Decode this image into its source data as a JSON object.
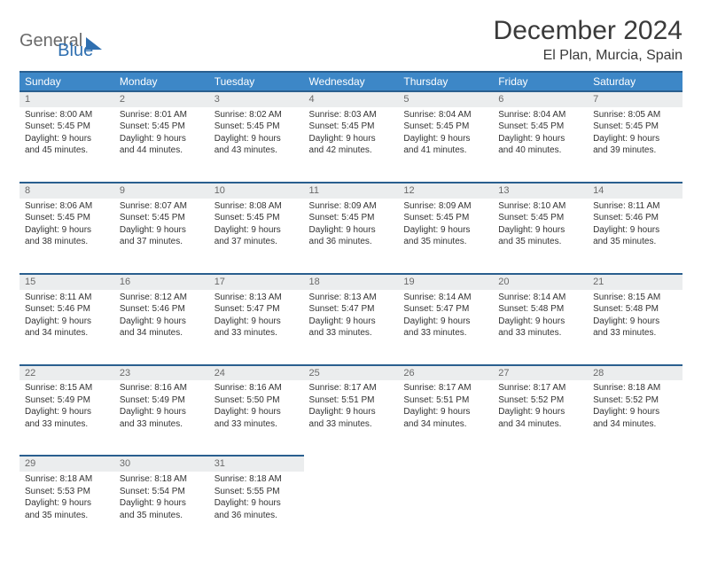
{
  "colors": {
    "header_bg": "#3d87c7",
    "header_border": "#2a5f8f",
    "daynum_bg": "#ebedee",
    "text": "#333333",
    "logo_gray": "#6a6a6a",
    "logo_blue": "#2f6fb0"
  },
  "logo": {
    "part1": "General",
    "part2": "Blue"
  },
  "title": {
    "month": "December 2024",
    "location": "El Plan, Murcia, Spain"
  },
  "weekdays": [
    "Sunday",
    "Monday",
    "Tuesday",
    "Wednesday",
    "Thursday",
    "Friday",
    "Saturday"
  ],
  "weeks": [
    [
      {
        "n": "1",
        "sr": "Sunrise: 8:00 AM",
        "ss": "Sunset: 5:45 PM",
        "d1": "Daylight: 9 hours",
        "d2": "and 45 minutes."
      },
      {
        "n": "2",
        "sr": "Sunrise: 8:01 AM",
        "ss": "Sunset: 5:45 PM",
        "d1": "Daylight: 9 hours",
        "d2": "and 44 minutes."
      },
      {
        "n": "3",
        "sr": "Sunrise: 8:02 AM",
        "ss": "Sunset: 5:45 PM",
        "d1": "Daylight: 9 hours",
        "d2": "and 43 minutes."
      },
      {
        "n": "4",
        "sr": "Sunrise: 8:03 AM",
        "ss": "Sunset: 5:45 PM",
        "d1": "Daylight: 9 hours",
        "d2": "and 42 minutes."
      },
      {
        "n": "5",
        "sr": "Sunrise: 8:04 AM",
        "ss": "Sunset: 5:45 PM",
        "d1": "Daylight: 9 hours",
        "d2": "and 41 minutes."
      },
      {
        "n": "6",
        "sr": "Sunrise: 8:04 AM",
        "ss": "Sunset: 5:45 PM",
        "d1": "Daylight: 9 hours",
        "d2": "and 40 minutes."
      },
      {
        "n": "7",
        "sr": "Sunrise: 8:05 AM",
        "ss": "Sunset: 5:45 PM",
        "d1": "Daylight: 9 hours",
        "d2": "and 39 minutes."
      }
    ],
    [
      {
        "n": "8",
        "sr": "Sunrise: 8:06 AM",
        "ss": "Sunset: 5:45 PM",
        "d1": "Daylight: 9 hours",
        "d2": "and 38 minutes."
      },
      {
        "n": "9",
        "sr": "Sunrise: 8:07 AM",
        "ss": "Sunset: 5:45 PM",
        "d1": "Daylight: 9 hours",
        "d2": "and 37 minutes."
      },
      {
        "n": "10",
        "sr": "Sunrise: 8:08 AM",
        "ss": "Sunset: 5:45 PM",
        "d1": "Daylight: 9 hours",
        "d2": "and 37 minutes."
      },
      {
        "n": "11",
        "sr": "Sunrise: 8:09 AM",
        "ss": "Sunset: 5:45 PM",
        "d1": "Daylight: 9 hours",
        "d2": "and 36 minutes."
      },
      {
        "n": "12",
        "sr": "Sunrise: 8:09 AM",
        "ss": "Sunset: 5:45 PM",
        "d1": "Daylight: 9 hours",
        "d2": "and 35 minutes."
      },
      {
        "n": "13",
        "sr": "Sunrise: 8:10 AM",
        "ss": "Sunset: 5:45 PM",
        "d1": "Daylight: 9 hours",
        "d2": "and 35 minutes."
      },
      {
        "n": "14",
        "sr": "Sunrise: 8:11 AM",
        "ss": "Sunset: 5:46 PM",
        "d1": "Daylight: 9 hours",
        "d2": "and 35 minutes."
      }
    ],
    [
      {
        "n": "15",
        "sr": "Sunrise: 8:11 AM",
        "ss": "Sunset: 5:46 PM",
        "d1": "Daylight: 9 hours",
        "d2": "and 34 minutes."
      },
      {
        "n": "16",
        "sr": "Sunrise: 8:12 AM",
        "ss": "Sunset: 5:46 PM",
        "d1": "Daylight: 9 hours",
        "d2": "and 34 minutes."
      },
      {
        "n": "17",
        "sr": "Sunrise: 8:13 AM",
        "ss": "Sunset: 5:47 PM",
        "d1": "Daylight: 9 hours",
        "d2": "and 33 minutes."
      },
      {
        "n": "18",
        "sr": "Sunrise: 8:13 AM",
        "ss": "Sunset: 5:47 PM",
        "d1": "Daylight: 9 hours",
        "d2": "and 33 minutes."
      },
      {
        "n": "19",
        "sr": "Sunrise: 8:14 AM",
        "ss": "Sunset: 5:47 PM",
        "d1": "Daylight: 9 hours",
        "d2": "and 33 minutes."
      },
      {
        "n": "20",
        "sr": "Sunrise: 8:14 AM",
        "ss": "Sunset: 5:48 PM",
        "d1": "Daylight: 9 hours",
        "d2": "and 33 minutes."
      },
      {
        "n": "21",
        "sr": "Sunrise: 8:15 AM",
        "ss": "Sunset: 5:48 PM",
        "d1": "Daylight: 9 hours",
        "d2": "and 33 minutes."
      }
    ],
    [
      {
        "n": "22",
        "sr": "Sunrise: 8:15 AM",
        "ss": "Sunset: 5:49 PM",
        "d1": "Daylight: 9 hours",
        "d2": "and 33 minutes."
      },
      {
        "n": "23",
        "sr": "Sunrise: 8:16 AM",
        "ss": "Sunset: 5:49 PM",
        "d1": "Daylight: 9 hours",
        "d2": "and 33 minutes."
      },
      {
        "n": "24",
        "sr": "Sunrise: 8:16 AM",
        "ss": "Sunset: 5:50 PM",
        "d1": "Daylight: 9 hours",
        "d2": "and 33 minutes."
      },
      {
        "n": "25",
        "sr": "Sunrise: 8:17 AM",
        "ss": "Sunset: 5:51 PM",
        "d1": "Daylight: 9 hours",
        "d2": "and 33 minutes."
      },
      {
        "n": "26",
        "sr": "Sunrise: 8:17 AM",
        "ss": "Sunset: 5:51 PM",
        "d1": "Daylight: 9 hours",
        "d2": "and 34 minutes."
      },
      {
        "n": "27",
        "sr": "Sunrise: 8:17 AM",
        "ss": "Sunset: 5:52 PM",
        "d1": "Daylight: 9 hours",
        "d2": "and 34 minutes."
      },
      {
        "n": "28",
        "sr": "Sunrise: 8:18 AM",
        "ss": "Sunset: 5:52 PM",
        "d1": "Daylight: 9 hours",
        "d2": "and 34 minutes."
      }
    ],
    [
      {
        "n": "29",
        "sr": "Sunrise: 8:18 AM",
        "ss": "Sunset: 5:53 PM",
        "d1": "Daylight: 9 hours",
        "d2": "and 35 minutes."
      },
      {
        "n": "30",
        "sr": "Sunrise: 8:18 AM",
        "ss": "Sunset: 5:54 PM",
        "d1": "Daylight: 9 hours",
        "d2": "and 35 minutes."
      },
      {
        "n": "31",
        "sr": "Sunrise: 8:18 AM",
        "ss": "Sunset: 5:55 PM",
        "d1": "Daylight: 9 hours",
        "d2": "and 36 minutes."
      },
      null,
      null,
      null,
      null
    ]
  ]
}
